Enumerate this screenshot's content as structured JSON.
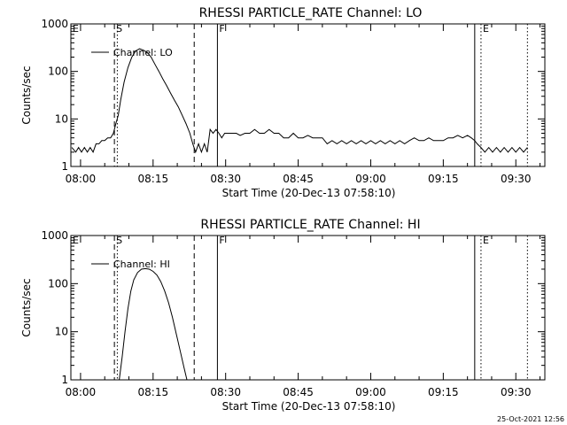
{
  "footer": {
    "timestamp": "25-Oct-2021 12:56"
  },
  "chart_data": [
    {
      "type": "line",
      "title": "RHESSI PARTICLE_RATE Channel: LO",
      "xlabel": "Start Time (20-Dec-13 07:58:10)",
      "ylabel": "Counts/sec",
      "y_scale": "log",
      "ylim": [
        1,
        1000
      ],
      "xlim_minutes": [
        -2,
        96
      ],
      "x_ticks": [
        "08:00",
        "08:15",
        "08:30",
        "08:45",
        "09:00",
        "09:15",
        "09:30"
      ],
      "y_ticks": [
        "1",
        "10",
        "100",
        "1000"
      ],
      "legend": {
        "label": "Channel: LO",
        "placement": "top-left"
      },
      "markers": [
        {
          "label": "E",
          "time_min": -2,
          "style": "solid"
        },
        {
          "label": "S",
          "time_min": 7,
          "style": "dashed"
        },
        {
          "label": "",
          "time_min": 7.6,
          "style": "dotted"
        },
        {
          "label": "",
          "time_min": 23.5,
          "style": "dashed"
        },
        {
          "label": "F",
          "time_min": 28.3,
          "style": "solid"
        },
        {
          "label": "",
          "time_min": 81.5,
          "style": "solid"
        },
        {
          "label": "E",
          "time_min": 82.8,
          "style": "dotted"
        },
        {
          "label": "",
          "time_min": 92.4,
          "style": "dotted"
        }
      ],
      "series": [
        {
          "name": "Channel: LO",
          "x_min": [
            -1.8,
            -1,
            -0.4,
            0.2,
            0.8,
            1.4,
            2,
            2.6,
            3.2,
            3.8,
            4.4,
            5,
            5.6,
            6.2,
            6.8,
            7.3,
            7.8,
            8.3,
            9,
            9.8,
            10.6,
            11.4,
            12.2,
            13,
            13.8,
            14.6,
            15.4,
            16.2,
            17,
            17.8,
            18.6,
            19.4,
            20.2,
            21,
            21.8,
            22.6,
            23.2,
            23.8,
            24.4,
            25,
            25.6,
            26.2,
            26.8,
            27.4,
            28,
            28.6,
            29.2,
            29.8,
            30.6,
            31.4,
            32.2,
            33,
            34,
            35,
            36,
            37,
            38,
            39,
            40,
            41,
            42,
            43,
            44,
            45,
            46,
            47,
            48,
            49,
            50,
            51,
            52,
            53,
            54,
            55,
            56,
            57,
            58,
            59,
            60,
            61,
            62,
            63,
            64,
            65,
            66,
            67,
            68,
            69,
            70,
            71,
            72,
            73,
            74,
            75,
            76,
            77,
            78,
            79,
            80,
            80.8,
            81.5,
            82,
            82.8,
            83.6,
            84.4,
            85.2,
            86,
            86.8,
            87.6,
            88.4,
            89.2,
            90,
            90.8,
            91.6,
            92.4
          ],
          "y": [
            2.5,
            2,
            2.5,
            2,
            2.5,
            2,
            2.5,
            2,
            3,
            3,
            3.5,
            3.5,
            4,
            4,
            5,
            8,
            12,
            25,
            60,
            120,
            200,
            270,
            300,
            280,
            250,
            200,
            140,
            100,
            70,
            50,
            35,
            25,
            18,
            12,
            8,
            5,
            3,
            2,
            3,
            2,
            3,
            2,
            6,
            5,
            6,
            5,
            4,
            5,
            5,
            5,
            5,
            4.5,
            5,
            5,
            6,
            5,
            5,
            6,
            5,
            5,
            4,
            4,
            5,
            4,
            4,
            4.5,
            4,
            4,
            4,
            3,
            3.5,
            3,
            3.5,
            3,
            3.5,
            3,
            3.5,
            3,
            3.5,
            3,
            3.5,
            3,
            3.5,
            3,
            3.5,
            3,
            3.5,
            4,
            3.5,
            3.5,
            4,
            3.5,
            3.5,
            3.5,
            4,
            4,
            4.5,
            4,
            4.5,
            4,
            3.5,
            3,
            2.5,
            2,
            2.5,
            2,
            2.5,
            2,
            2.5,
            2,
            2.5,
            2,
            2.5,
            2,
            2.5
          ]
        }
      ]
    },
    {
      "type": "line",
      "title": "RHESSI PARTICLE_RATE Channel: HI",
      "xlabel": "Start Time (20-Dec-13 07:58:10)",
      "ylabel": "Counts/sec",
      "y_scale": "log",
      "ylim": [
        1,
        1000
      ],
      "xlim_minutes": [
        -2,
        96
      ],
      "x_ticks": [
        "08:00",
        "08:15",
        "08:30",
        "08:45",
        "09:00",
        "09:15",
        "09:30"
      ],
      "y_ticks": [
        "1",
        "10",
        "100",
        "1000"
      ],
      "legend": {
        "label": "Channel: HI",
        "placement": "top-left"
      },
      "markers": [
        {
          "label": "E",
          "time_min": -2,
          "style": "solid"
        },
        {
          "label": "S",
          "time_min": 7,
          "style": "dashed"
        },
        {
          "label": "",
          "time_min": 7.6,
          "style": "dotted"
        },
        {
          "label": "",
          "time_min": 23.5,
          "style": "dashed"
        },
        {
          "label": "F",
          "time_min": 28.3,
          "style": "solid"
        },
        {
          "label": "",
          "time_min": 81.5,
          "style": "solid"
        },
        {
          "label": "E",
          "time_min": 82.8,
          "style": "dotted"
        },
        {
          "label": "",
          "time_min": 92.4,
          "style": "dotted"
        }
      ],
      "series": [
        {
          "name": "Channel: HI",
          "x_min": [
            8,
            8.6,
            9.2,
            9.8,
            10.4,
            11,
            11.8,
            12.6,
            13.4,
            14.2,
            15,
            15.8,
            16.6,
            17.4,
            18.2,
            19,
            19.8,
            20.6,
            21.4,
            22
          ],
          "y": [
            1,
            3,
            10,
            30,
            70,
            120,
            170,
            200,
            205,
            200,
            180,
            150,
            110,
            70,
            40,
            20,
            9,
            4,
            1.8,
            1
          ]
        }
      ]
    }
  ]
}
